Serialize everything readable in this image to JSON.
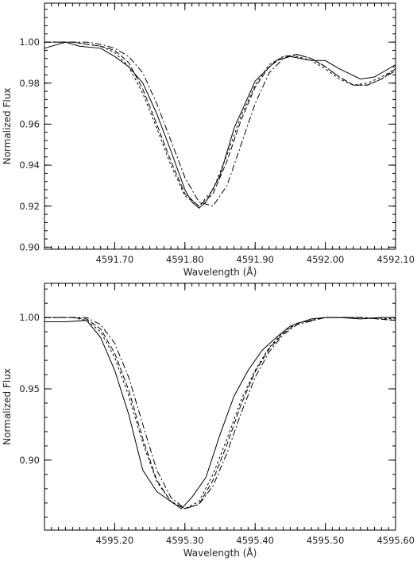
{
  "chart_data": [
    {
      "type": "line",
      "xlabel": "Wavelength (Å)",
      "ylabel": "Normalized Flux",
      "xlim": [
        4591.6,
        4592.1
      ],
      "ylim": [
        0.899,
        1.019
      ],
      "xticks": [
        4591.7,
        4591.8,
        4591.9,
        4592.0,
        4592.1
      ],
      "xtick_labels": [
        "4591.70",
        "4591.80",
        "4591.90",
        "4592.00",
        "4592.10"
      ],
      "xminor_step": 0.01,
      "yticks": [
        0.9,
        0.92,
        0.94,
        0.96,
        0.98,
        1.0
      ],
      "ytick_labels": [
        "0.90",
        "0.92",
        "0.94",
        "0.96",
        "0.98",
        "1.00"
      ],
      "yminor_step": 0.004,
      "legend": "none",
      "grid": false,
      "series": [
        {
          "dash": "solid",
          "x": [
            4591.6,
            4591.63,
            4591.65,
            4591.68,
            4591.7,
            4591.72,
            4591.74,
            4591.76,
            4591.78,
            4591.8,
            4591.81,
            4591.82,
            4591.83,
            4591.85,
            4591.87,
            4591.9,
            4591.93,
            4591.95,
            4591.98,
            4592.0,
            4592.02,
            4592.05,
            4592.07,
            4592.1
          ],
          "y": [
            0.997,
            1.0,
            0.998,
            0.997,
            0.993,
            0.988,
            0.98,
            0.965,
            0.947,
            0.928,
            0.922,
            0.919,
            0.922,
            0.935,
            0.958,
            0.981,
            0.991,
            0.993,
            0.991,
            0.991,
            0.987,
            0.982,
            0.983,
            0.989
          ]
        },
        {
          "dash": "3,3",
          "x": [
            4591.6,
            4591.62,
            4591.64,
            4591.66,
            4591.68,
            4591.7,
            4591.72,
            4591.74,
            4591.76,
            4591.78,
            4591.8,
            4591.82,
            4591.84,
            4591.86,
            4591.88,
            4591.9,
            4591.92,
            4591.94,
            4591.96,
            4591.98,
            4592.0,
            4592.02,
            4592.04,
            4592.06,
            4592.08,
            4592.1
          ],
          "y": [
            1.0,
            1.0,
            1.0,
            0.999,
            0.998,
            0.995,
            0.988,
            0.975,
            0.958,
            0.94,
            0.925,
            0.92,
            0.928,
            0.945,
            0.964,
            0.979,
            0.989,
            0.993,
            0.993,
            0.991,
            0.987,
            0.982,
            0.979,
            0.98,
            0.983,
            0.987
          ]
        },
        {
          "dash": "7,3",
          "x": [
            4591.6,
            4591.62,
            4591.64,
            4591.66,
            4591.68,
            4591.7,
            4591.72,
            4591.74,
            4591.76,
            4591.78,
            4591.8,
            4591.82,
            4591.84,
            4591.86,
            4591.88,
            4591.9,
            4591.92,
            4591.94,
            4591.96,
            4591.98,
            4592.0,
            4592.02,
            4592.04,
            4592.06,
            4592.08,
            4592.1
          ],
          "y": [
            1.0,
            1.0,
            1.0,
            0.999,
            0.998,
            0.996,
            0.99,
            0.977,
            0.96,
            0.942,
            0.926,
            0.92,
            0.926,
            0.942,
            0.962,
            0.978,
            0.988,
            0.993,
            0.994,
            0.992,
            0.988,
            0.983,
            0.979,
            0.979,
            0.982,
            0.987
          ]
        },
        {
          "dash": "8,3,2,3",
          "x": [
            4591.6,
            4591.62,
            4591.64,
            4591.66,
            4591.68,
            4591.7,
            4591.72,
            4591.74,
            4591.76,
            4591.78,
            4591.8,
            4591.82,
            4591.84,
            4591.86,
            4591.88,
            4591.9,
            4591.92,
            4591.94,
            4591.96,
            4591.98,
            4592.0,
            4592.02,
            4592.04,
            4592.06,
            4592.08,
            4592.1
          ],
          "y": [
            1.0,
            1.0,
            1.0,
            1.0,
            0.999,
            0.997,
            0.993,
            0.985,
            0.97,
            0.952,
            0.934,
            0.922,
            0.92,
            0.93,
            0.95,
            0.97,
            0.985,
            0.992,
            0.994,
            0.992,
            0.988,
            0.983,
            0.979,
            0.979,
            0.982,
            0.986
          ]
        }
      ]
    },
    {
      "type": "line",
      "xlabel": "Wavelength (Å)",
      "ylabel": "Normalized Flux",
      "xlim": [
        4595.1,
        4595.6
      ],
      "ylim": [
        0.851,
        1.024
      ],
      "xticks": [
        4595.2,
        4595.3,
        4595.4,
        4595.5,
        4595.6
      ],
      "xtick_labels": [
        "4595.20",
        "4595.30",
        "4595.40",
        "4595.50",
        "4595.60"
      ],
      "xminor_step": 0.01,
      "yticks": [
        0.9,
        0.95,
        1.0
      ],
      "ytick_labels": [
        "0.90",
        "0.95",
        "1.00"
      ],
      "yminor_step": 0.01,
      "legend": "none",
      "grid": false,
      "series": [
        {
          "dash": "solid",
          "x": [
            4595.1,
            4595.13,
            4595.16,
            4595.18,
            4595.2,
            4595.22,
            4595.24,
            4595.26,
            4595.28,
            4595.295,
            4595.31,
            4595.33,
            4595.35,
            4595.37,
            4595.39,
            4595.41,
            4595.43,
            4595.45,
            4595.48,
            4595.5,
            4595.52,
            4595.55,
            4595.58,
            4595.6
          ],
          "y": [
            0.997,
            0.997,
            0.998,
            0.986,
            0.963,
            0.932,
            0.893,
            0.878,
            0.871,
            0.866,
            0.874,
            0.888,
            0.918,
            0.945,
            0.963,
            0.977,
            0.986,
            0.994,
            0.999,
            1.0,
            1.0,
            0.999,
            1.0,
            1.0
          ]
        },
        {
          "dash": "3,3",
          "x": [
            4595.1,
            4595.14,
            4595.16,
            4595.18,
            4595.2,
            4595.22,
            4595.24,
            4595.26,
            4595.28,
            4595.3,
            4595.32,
            4595.34,
            4595.36,
            4595.38,
            4595.4,
            4595.42,
            4595.44,
            4595.46,
            4595.5,
            4595.55,
            4595.6
          ],
          "y": [
            1.0,
            1.0,
            0.998,
            0.99,
            0.972,
            0.945,
            0.912,
            0.885,
            0.871,
            0.866,
            0.871,
            0.89,
            0.915,
            0.942,
            0.963,
            0.979,
            0.99,
            0.996,
            1.0,
            1.0,
            0.999
          ]
        },
        {
          "dash": "7,3",
          "x": [
            4595.1,
            4595.14,
            4595.16,
            4595.18,
            4595.2,
            4595.22,
            4595.24,
            4595.26,
            4595.28,
            4595.3,
            4595.32,
            4595.34,
            4595.36,
            4595.38,
            4595.4,
            4595.42,
            4595.44,
            4595.46,
            4595.5,
            4595.55,
            4595.6
          ],
          "y": [
            1.0,
            1.0,
            0.999,
            0.992,
            0.975,
            0.949,
            0.915,
            0.886,
            0.871,
            0.866,
            0.869,
            0.886,
            0.911,
            0.939,
            0.962,
            0.978,
            0.989,
            0.996,
            1.0,
            1.0,
            0.998
          ]
        },
        {
          "dash": "8,3,2,3",
          "x": [
            4595.1,
            4595.14,
            4595.16,
            4595.18,
            4595.2,
            4595.22,
            4595.24,
            4595.26,
            4595.28,
            4595.3,
            4595.32,
            4595.34,
            4595.36,
            4595.38,
            4595.4,
            4595.42,
            4595.44,
            4595.46,
            4595.5,
            4595.55,
            4595.6
          ],
          "y": [
            1.0,
            1.0,
            1.0,
            0.995,
            0.982,
            0.958,
            0.925,
            0.893,
            0.874,
            0.866,
            0.869,
            0.882,
            0.905,
            0.933,
            0.958,
            0.976,
            0.988,
            0.995,
            1.0,
            1.0,
            0.998
          ]
        }
      ]
    }
  ]
}
